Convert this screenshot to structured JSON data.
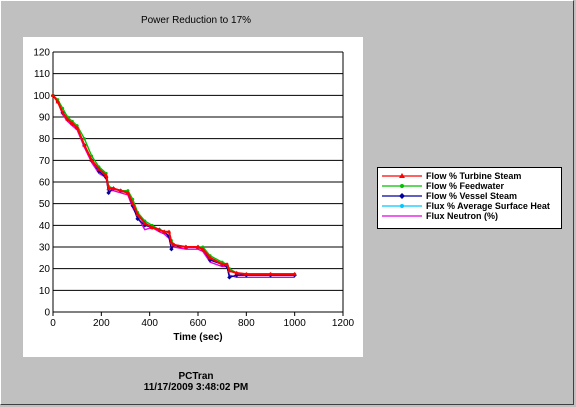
{
  "window": {
    "title": "Power Reduction to 17%"
  },
  "footer": {
    "app": "PCTran",
    "timestamp": "11/17/2009 3:48:02 PM"
  },
  "chart_data": {
    "type": "line",
    "title": "Power Reduction to 17%",
    "xlabel": "Time (sec)",
    "ylabel": "",
    "xlim": [
      0,
      1200
    ],
    "ylim": [
      0,
      120
    ],
    "xticks": [
      0,
      200,
      400,
      600,
      800,
      1000,
      1200
    ],
    "yticks": [
      0,
      10,
      20,
      30,
      40,
      50,
      60,
      70,
      80,
      90,
      100,
      110,
      120
    ],
    "grid": "horizontal",
    "legend_position": "right",
    "series": [
      {
        "name": "Flow  % Turbine Steam",
        "color": "#ff0000",
        "marker": "triangle",
        "x": [
          0,
          20,
          40,
          60,
          80,
          100,
          130,
          160,
          190,
          220,
          230,
          250,
          280,
          310,
          330,
          350,
          380,
          410,
          440,
          460,
          480,
          490,
          500,
          550,
          600,
          620,
          650,
          700,
          720,
          730,
          760,
          800,
          900,
          1000
        ],
        "y": [
          100,
          97,
          92,
          89,
          87,
          85,
          77,
          70,
          66,
          63,
          57,
          57,
          56,
          55,
          50,
          45,
          41,
          39,
          38,
          37,
          37,
          32,
          31,
          30,
          30,
          29,
          25,
          22,
          22,
          19,
          18,
          17.5,
          17.5,
          17.5
        ]
      },
      {
        "name": "Flow % Feedwater",
        "color": "#00c000",
        "marker": "dot",
        "x": [
          0,
          20,
          40,
          60,
          80,
          100,
          130,
          160,
          190,
          220,
          230,
          250,
          280,
          310,
          330,
          350,
          380,
          410,
          440,
          460,
          480,
          490,
          500,
          550,
          600,
          620,
          650,
          700,
          720,
          730,
          760,
          800,
          900,
          1000
        ],
        "y": [
          100,
          98,
          94,
          90,
          88,
          86,
          80,
          72,
          67,
          64,
          58,
          57,
          56,
          56,
          52,
          46,
          42,
          40,
          38,
          37,
          37,
          33,
          31,
          30,
          30,
          30,
          26,
          23,
          22,
          20,
          18,
          17.5,
          17.5,
          17.5
        ]
      },
      {
        "name": "Flow % Vessel Steam",
        "color": "#0000a0",
        "marker": "diamond",
        "x": [
          0,
          20,
          40,
          60,
          80,
          100,
          130,
          160,
          190,
          220,
          230,
          250,
          280,
          310,
          330,
          350,
          380,
          410,
          440,
          460,
          480,
          490,
          500,
          550,
          600,
          620,
          650,
          700,
          720,
          730,
          760,
          800,
          900,
          1000
        ],
        "y": [
          100,
          97,
          92,
          89,
          87,
          85,
          77,
          70,
          65,
          62,
          55,
          57,
          56,
          55,
          49,
          43,
          40,
          39,
          38,
          37,
          35,
          29,
          31,
          30,
          30,
          29,
          24,
          22,
          21,
          16,
          17,
          17,
          17,
          17
        ]
      },
      {
        "name": "Flux % Average Surface Heat",
        "color": "#00c8ff",
        "marker": "dot",
        "x": [
          0,
          20,
          40,
          60,
          80,
          100,
          130,
          160,
          190,
          220,
          230,
          250,
          280,
          310,
          330,
          350,
          380,
          410,
          440,
          460,
          480,
          490,
          500,
          550,
          600,
          620,
          650,
          700,
          720,
          730,
          760,
          800,
          900,
          1000
        ],
        "y": [
          100,
          97,
          92,
          89,
          87,
          85,
          77,
          70,
          66,
          63,
          57,
          57,
          56,
          55,
          50,
          45,
          41,
          39,
          38,
          37,
          37,
          32,
          31,
          30,
          30,
          29,
          25,
          22,
          22,
          19,
          18,
          17.5,
          17.5,
          17.5
        ]
      },
      {
        "name": "Flux Neutron (%)",
        "color": "#e000e0",
        "marker": "none",
        "x": [
          0,
          20,
          40,
          60,
          80,
          100,
          130,
          160,
          190,
          220,
          230,
          250,
          280,
          310,
          330,
          350,
          380,
          410,
          440,
          460,
          480,
          490,
          500,
          550,
          600,
          620,
          650,
          700,
          720,
          730,
          760,
          800,
          900,
          1000
        ],
        "y": [
          100,
          97,
          91,
          88,
          86,
          84,
          76,
          69,
          64,
          62,
          56,
          56,
          55,
          54,
          48,
          44,
          38,
          39,
          37,
          36,
          34,
          30,
          30,
          29,
          29,
          28,
          23,
          21,
          21,
          17,
          16,
          16,
          16,
          16
        ]
      }
    ]
  }
}
